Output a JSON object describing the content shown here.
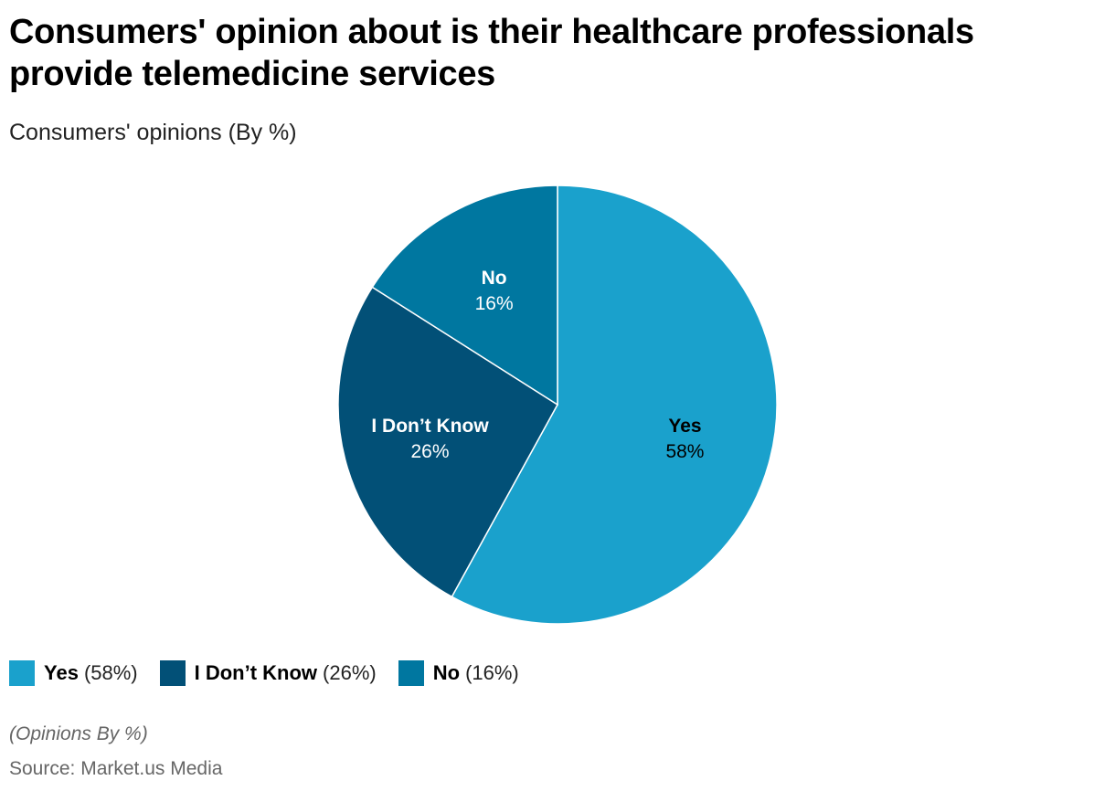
{
  "chart_data": {
    "type": "pie",
    "title": "Consumers' opinion about is their healthcare professionals provide telemedicine services",
    "subtitle": "Consumers' opinions (By %)",
    "slices": [
      {
        "label": "Yes",
        "value": 58,
        "value_text": "58%",
        "legend_pct": "(58%)",
        "color": "#1aa1cc",
        "label_color": "#000000"
      },
      {
        "label": "I Don’t Know",
        "value": 26,
        "value_text": "26%",
        "legend_pct": "(26%)",
        "color": "#025077",
        "label_color": "#ffffff"
      },
      {
        "label": "No",
        "value": 16,
        "value_text": "16%",
        "legend_pct": "(16%)",
        "color": "#0077a0",
        "label_color": "#ffffff"
      }
    ],
    "legend_position": "bottom-left",
    "note": "(Opinions By %)",
    "source": "Source: Market.us Media"
  }
}
